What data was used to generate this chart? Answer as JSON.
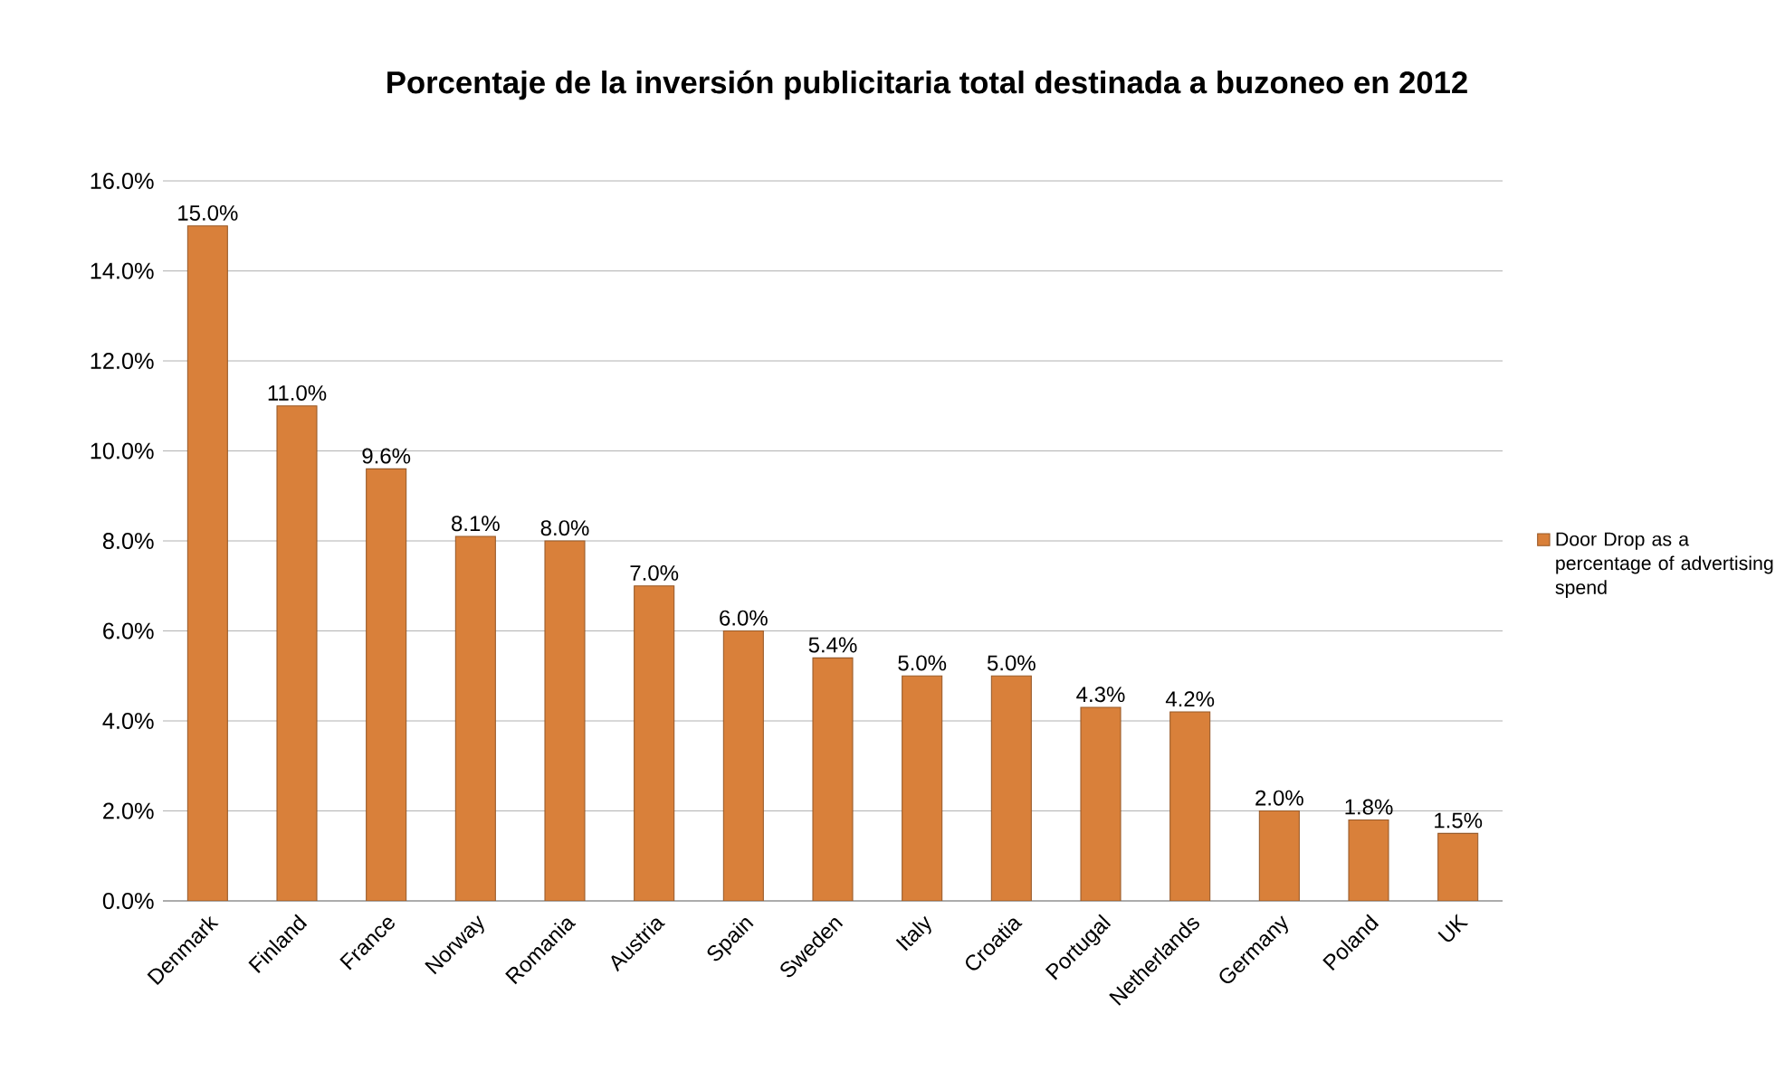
{
  "chart_data": {
    "type": "bar",
    "title": "Porcentaje de la inversión publicitaria total destinada a buzoneo en 2012",
    "categories": [
      "Denmark",
      "Finland",
      "France",
      "Norway",
      "Romania",
      "Austria",
      "Spain",
      "Sweden",
      "Italy",
      "Croatia",
      "Portugal",
      "Netherlands",
      "Germany",
      "Poland",
      "UK"
    ],
    "series": [
      {
        "name": "Door Drop as a percentage of advertising spend",
        "color": "#d9803a",
        "values": [
          15.0,
          11.0,
          9.6,
          8.1,
          8.0,
          7.0,
          6.0,
          5.4,
          5.0,
          5.0,
          4.3,
          4.2,
          2.0,
          1.8,
          1.5
        ],
        "value_labels": [
          "15.0%",
          "11.0%",
          "9.6%",
          "8.1%",
          "8.0%",
          "7.0%",
          "6.0%",
          "5.4%",
          "5.0%",
          "5.0%",
          "4.3%",
          "4.2%",
          "2.0%",
          "1.8%",
          "1.5%"
        ]
      }
    ],
    "ylim": [
      0,
      16
    ],
    "yticks": [
      {
        "value": 0,
        "label": "0.0%"
      },
      {
        "value": 2,
        "label": "2.0%"
      },
      {
        "value": 4,
        "label": "4.0%"
      },
      {
        "value": 6,
        "label": "6.0%"
      },
      {
        "value": 8,
        "label": "8.0%"
      },
      {
        "value": 10,
        "label": "10.0%"
      },
      {
        "value": 12,
        "label": "12.0%"
      },
      {
        "value": 14,
        "label": "14.0%"
      },
      {
        "value": 16,
        "label": "16.0%"
      }
    ],
    "grid": "y",
    "legend": "right"
  }
}
